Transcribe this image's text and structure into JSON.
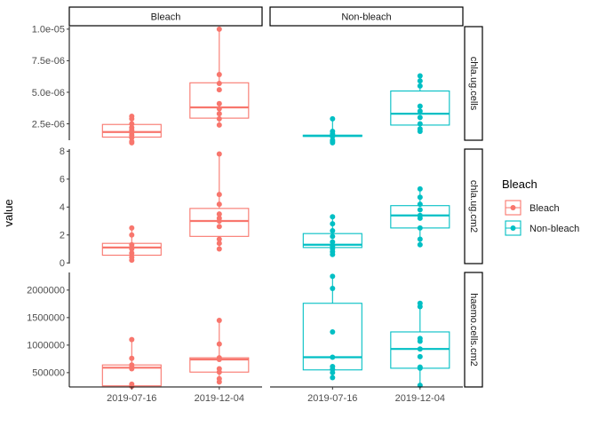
{
  "chart_data": {
    "type": "box",
    "ylabel": "value",
    "xlabel": "",
    "categories": [
      "2019-07-16",
      "2019-12-04"
    ],
    "facet_columns": [
      "Bleach",
      "Non-bleach"
    ],
    "facet_rows": [
      "chla.ug.cells",
      "chla.ug.cm2",
      "haemo.cells.cm2"
    ],
    "legend": {
      "title": "Bleach",
      "placement": "right",
      "entries": [
        {
          "label": "Bleach",
          "color": "#F8766D"
        },
        {
          "label": "Non-bleach",
          "color": "#00BFC4"
        }
      ]
    },
    "colors": {
      "Bleach": "#F8766D",
      "Non-bleach": "#00BFC4"
    },
    "rows": [
      {
        "name": "chla.ug.cells",
        "ylim": [
          1.2e-06,
          1.02e-05
        ],
        "ticks": [
          {
            "v": 2.5e-06,
            "label": "2.5e-06"
          },
          {
            "v": 5e-06,
            "label": "5.0e-06"
          },
          {
            "v": 7.5e-06,
            "label": "7.5e-06"
          },
          {
            "v": 1e-05,
            "label": "1.0e-05"
          }
        ],
        "panels": [
          [
            {
              "category": "2019-07-16",
              "q1": 1.45e-06,
              "median": 1.85e-06,
              "q3": 2.45e-06,
              "whisker_low": 1e-06,
              "whisker_high": 3.1e-06,
              "points": [
                1e-06,
                1.1e-06,
                1.4e-06,
                1.6e-06,
                1.8e-06,
                2e-06,
                2.2e-06,
                2.5e-06,
                2.9e-06,
                3.1e-06
              ]
            },
            {
              "category": "2019-12-04",
              "q1": 2.95e-06,
              "median": 3.8e-06,
              "q3": 5.75e-06,
              "whisker_low": 2.4e-06,
              "whisker_high": 1e-05,
              "points": [
                2.4e-06,
                2.9e-06,
                3.3e-06,
                3.7e-06,
                4.1e-06,
                5.2e-06,
                5.7e-06,
                6.4e-06,
                1e-05
              ]
            }
          ],
          [
            {
              "category": "2019-07-16",
              "q1": 1.5e-06,
              "median": 1.55e-06,
              "q3": 1.6e-06,
              "whisker_low": 1e-06,
              "whisker_high": 2.9e-06,
              "points": [
                1e-06,
                1.1e-06,
                1.2e-06,
                1.5e-06,
                1.6e-06,
                1.7e-06,
                1.9e-06,
                2.9e-06
              ]
            },
            {
              "category": "2019-12-04",
              "q1": 2.4e-06,
              "median": 3.3e-06,
              "q3": 5.1e-06,
              "whisker_low": 1.9e-06,
              "whisker_high": 6.3e-06,
              "points": [
                1.9e-06,
                2.1e-06,
                2.5e-06,
                3e-06,
                3.5e-06,
                3.9e-06,
                5.5e-06,
                5.9e-06,
                6.3e-06
              ]
            }
          ]
        ]
      },
      {
        "name": "chla.ug.cm2",
        "ylim": [
          -0.05,
          8.15
        ],
        "ticks": [
          {
            "v": 0,
            "label": "0"
          },
          {
            "v": 2,
            "label": "2"
          },
          {
            "v": 4,
            "label": "4"
          },
          {
            "v": 6,
            "label": "6"
          },
          {
            "v": 8,
            "label": "8"
          }
        ],
        "panels": [
          [
            {
              "category": "2019-07-16",
              "q1": 0.55,
              "median": 1.1,
              "q3": 1.4,
              "whisker_low": 0.2,
              "whisker_high": 2.5,
              "points": [
                0.2,
                0.4,
                0.7,
                1.0,
                1.1,
                1.3,
                2.0,
                2.5
              ]
            },
            {
              "category": "2019-12-04",
              "q1": 1.9,
              "median": 3.0,
              "q3": 3.9,
              "whisker_low": 1.0,
              "whisker_high": 7.8,
              "points": [
                1.0,
                1.4,
                1.7,
                2.6,
                3.0,
                3.2,
                3.5,
                4.2,
                4.9,
                7.8
              ]
            }
          ],
          [
            {
              "category": "2019-07-16",
              "q1": 1.1,
              "median": 1.3,
              "q3": 2.1,
              "whisker_low": 0.6,
              "whisker_high": 3.3,
              "points": [
                0.6,
                0.8,
                1.0,
                1.2,
                1.5,
                1.9,
                2.3,
                2.8,
                3.3
              ]
            },
            {
              "category": "2019-12-04",
              "q1": 2.5,
              "median": 3.4,
              "q3": 4.1,
              "whisker_low": 1.3,
              "whisker_high": 5.3,
              "points": [
                1.3,
                1.7,
                2.5,
                3.2,
                3.4,
                3.8,
                4.2,
                4.7,
                5.3
              ]
            }
          ]
        ]
      },
      {
        "name": "haemo.cells.cm2",
        "ylim": [
          240000,
          2320000
        ],
        "ticks": [
          {
            "v": 500000,
            "label": "500000"
          },
          {
            "v": 1000000,
            "label": "1000000"
          },
          {
            "v": 1500000,
            "label": "1500000"
          },
          {
            "v": 2000000,
            "label": "2000000"
          }
        ],
        "panels": [
          [
            {
              "category": "2019-07-16",
              "q1": 260000,
              "median": 590000,
              "q3": 640000,
              "whisker_low": 250000,
              "whisker_high": 1100000,
              "points": [
                250000,
                290000,
                570000,
                600000,
                640000,
                760000,
                1100000
              ]
            },
            {
              "category": "2019-12-04",
              "q1": 510000,
              "median": 740000,
              "q3": 770000,
              "whisker_low": 330000,
              "whisker_high": 1450000,
              "points": [
                330000,
                390000,
                510000,
                570000,
                740000,
                770000,
                1020000,
                1450000
              ]
            }
          ],
          [
            {
              "category": "2019-07-16",
              "q1": 550000,
              "median": 780000,
              "q3": 1760000,
              "whisker_low": 410000,
              "whisker_high": 2250000,
              "points": [
                410000,
                500000,
                560000,
                610000,
                780000,
                1240000,
                2030000,
                2250000
              ]
            },
            {
              "category": "2019-12-04",
              "q1": 580000,
              "median": 930000,
              "q3": 1240000,
              "whisker_low": 270000,
              "whisker_high": 1760000,
              "points": [
                270000,
                580000,
                600000,
                790000,
                930000,
                1070000,
                1120000,
                1700000,
                1760000
              ]
            }
          ]
        ]
      }
    ]
  }
}
